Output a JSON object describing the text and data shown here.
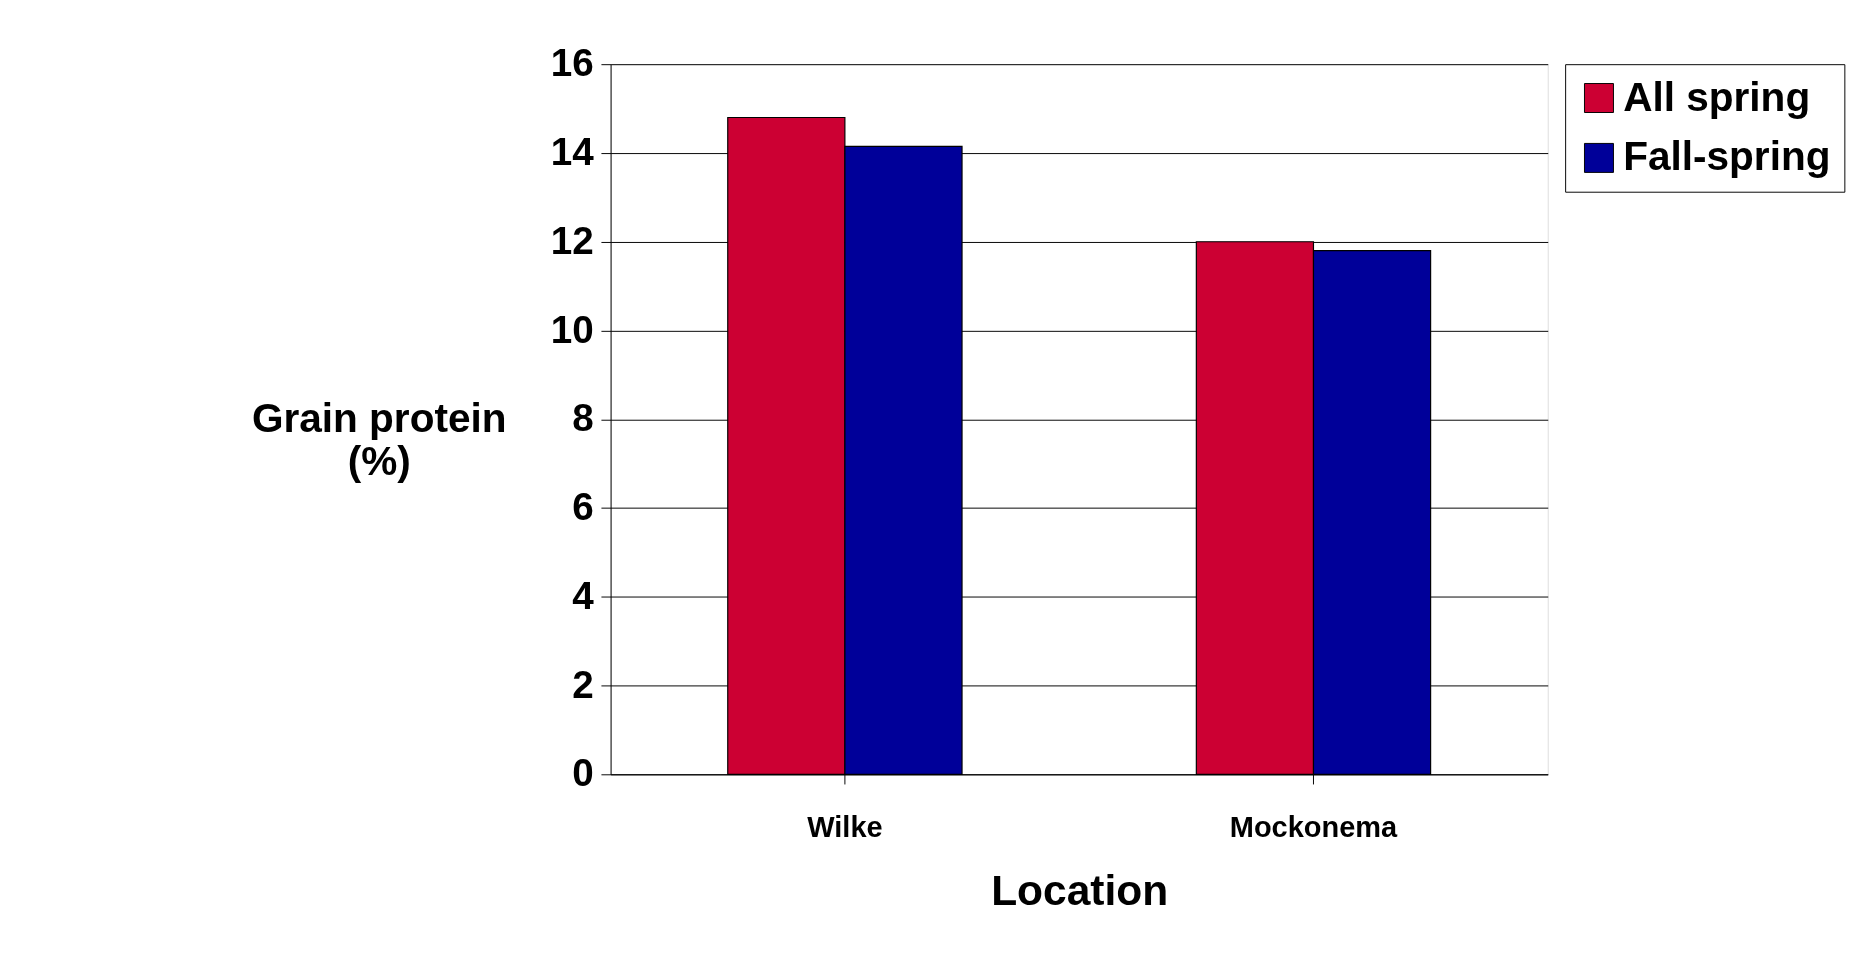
{
  "chart_data": {
    "type": "bar",
    "xlabel": "Location",
    "ylabel": "Grain protein (%)",
    "categories": [
      "Wilke",
      "Mockonema"
    ],
    "series": [
      {
        "name": "All spring",
        "color": "#cc0033",
        "values": [
          14.8,
          12.0
        ]
      },
      {
        "name": "Fall-spring",
        "color": "#000099",
        "values": [
          14.15,
          11.8
        ]
      }
    ],
    "ylim": [
      0,
      16
    ],
    "yticks": [
      0,
      2,
      4,
      6,
      8,
      10,
      12,
      14,
      16
    ],
    "grid": "y",
    "legend": "right"
  }
}
